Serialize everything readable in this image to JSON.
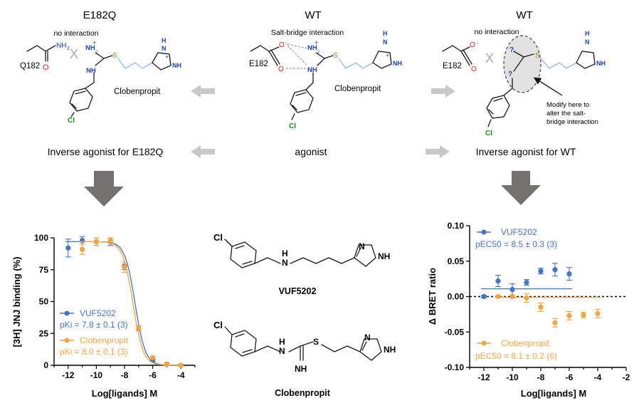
{
  "top": {
    "left_title": "E182Q",
    "mid_title": "WT",
    "right_title": "WT",
    "left_note": "no interaction",
    "mid_note": "Salt-bridge interaction",
    "right_note": "no interaction",
    "left_residue": "Q182",
    "mid_residue": "E182",
    "right_residue": "E182",
    "compound_label": "Clobenpropit",
    "modify_note": [
      "Modify here to",
      "alter the salt-",
      "bridge interaction"
    ],
    "left_caption": "Inverse agonist for E182Q",
    "mid_caption": "agonist",
    "right_caption": "Inverse agonist for WT"
  },
  "structures": {
    "vuf_label": "VUF5202",
    "clob_label": "Clobenpropit"
  },
  "colors": {
    "blue": "#4472c4",
    "orange": "#f4a442",
    "chlorine": "#1f8a1f",
    "nitrogen": "#1f3fbf",
    "oxygen": "#d21f1f",
    "sulfur": "#8c8c1a"
  },
  "chart_data": [
    {
      "type": "scatter",
      "ylabel": "[3H] JNJ binding (%)",
      "xlabel": "Log[ligands] M",
      "xlim": [
        -13,
        -3
      ],
      "ylim": [
        0,
        100
      ],
      "xticks": [
        "-12",
        "-10",
        "-8",
        "-6",
        "-4"
      ],
      "yticks": [
        "0",
        "25",
        "50",
        "75",
        "100"
      ],
      "legend_position": "bottom-left",
      "series": [
        {
          "name": "VUF5202",
          "stat": "pKi = 7.8 ± 0.1 (3)",
          "color": "#4472c4",
          "x": [
            -12,
            -11,
            -10,
            -9,
            -8,
            -7,
            -6,
            -5
          ],
          "y": [
            92,
            98,
            97,
            97,
            78,
            29,
            4,
            1
          ],
          "err": [
            7,
            3,
            3,
            3,
            3,
            2,
            1,
            1
          ],
          "curve": {
            "top": 97,
            "bottom": 0,
            "logIC50": -7.25,
            "hill": 1.2
          }
        },
        {
          "name": "Clobenpropit",
          "stat": "pKi = 8.0 ± 0.1 (3)",
          "color": "#f4a442",
          "x": [
            -11,
            -10,
            -9,
            -8,
            -7,
            -6,
            -5,
            -4
          ],
          "y": [
            91,
            97,
            98,
            77,
            29,
            6,
            1,
            0
          ],
          "err": [
            4,
            3,
            2,
            4,
            2,
            1,
            1,
            1
          ],
          "curve": {
            "top": 97,
            "bottom": 0,
            "logIC50": -7.4,
            "hill": 1.2
          }
        }
      ]
    },
    {
      "type": "scatter",
      "ylabel": "Δ BRET ratio",
      "xlabel": "Log[ligands] M",
      "xlim": [
        -13,
        -2
      ],
      "ylim": [
        -0.1,
        0.1
      ],
      "xticks": [
        "-12",
        "-10",
        "-8",
        "-6",
        "-4",
        "-2"
      ],
      "yticks": [
        "0.10",
        "0.05",
        "0.00",
        "-0.05",
        "-0.10"
      ],
      "legend_position": "top-left / bottom-left",
      "series": [
        {
          "name": "VUF5202",
          "stat": "pEC50 = 8.5 ± 0.3 (3)",
          "color": "#4472c4",
          "x": [
            -12,
            -11,
            -10,
            -9,
            -8,
            -7,
            -6
          ],
          "y": [
            0.0,
            0.022,
            0.01,
            0.02,
            0.036,
            0.038,
            0.032
          ],
          "err": [
            0.002,
            0.008,
            0.008,
            0.004,
            0.004,
            0.009,
            0.009
          ],
          "curve": {
            "bottom": 0.011,
            "top": 0.037,
            "logEC50": -8.5,
            "hill": 1.4
          }
        },
        {
          "name": "Clobenpropit",
          "stat": "pEC50 = 8.1 ± 0.2 (6)",
          "color": "#f4a442",
          "x": [
            -11,
            -10,
            -9,
            -8,
            -7,
            -6,
            -5,
            -4
          ],
          "y": [
            0.0,
            0.0,
            -0.002,
            -0.015,
            -0.037,
            -0.027,
            -0.026,
            -0.024
          ],
          "err": [
            0.001,
            0.002,
            0.006,
            0.006,
            0.006,
            0.006,
            0.004,
            0.006
          ],
          "curve": {
            "bottom": -0.001,
            "top": -0.027,
            "logEC50": -8.1,
            "hill": 1.4
          }
        }
      ]
    }
  ]
}
